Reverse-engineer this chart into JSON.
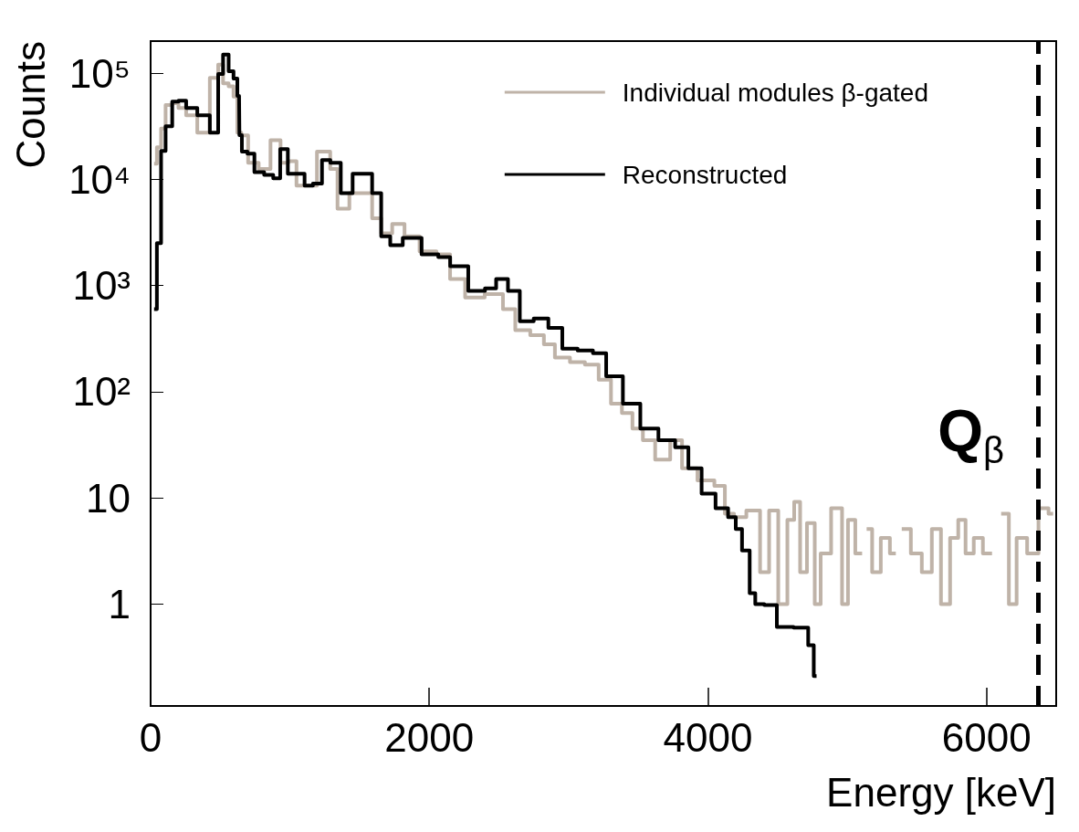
{
  "chart_data": {
    "type": "step",
    "xlabel": "Energy [keV]",
    "ylabel": "Counts",
    "log": "y",
    "xlim": [
      0,
      6500
    ],
    "xticks": [
      0,
      2000,
      4000,
      6000
    ],
    "ylim": [
      0.11,
      200000
    ],
    "yticks": [
      1,
      10,
      {
        "value": 100,
        "label": "10²"
      },
      {
        "value": 1000,
        "label": "10³"
      },
      {
        "value": 10000,
        "label": "10⁴"
      },
      {
        "value": 100000,
        "label": "10⁵"
      }
    ],
    "grid": false,
    "legend": "top right",
    "marker": "none",
    "line_style": "solid",
    "ref_lines": [
      {
        "axis": "x",
        "value": 6370,
        "label": "Q$_{β}$",
        "line_style": "dashed",
        "color": "#000000"
      }
    ],
    "series": [
      {
        "name": "Individual modules β-gated",
        "color": "#bfb3a8",
        "x": [
          25,
          65,
          85,
          130,
          180,
          220,
          290,
          380,
          470,
          500,
          540,
          580,
          610,
          635,
          667,
          733,
          818,
          903,
          962,
          1014,
          1080,
          1132,
          1256,
          1322,
          1361,
          1492,
          1557,
          1623,
          1688,
          1780,
          1865,
          1996,
          2107,
          2192,
          2323,
          2473,
          2585,
          2650,
          2800,
          2846,
          2958,
          3062,
          3173,
          3259,
          3350,
          3416,
          3501,
          3566,
          3677,
          3782,
          3847,
          4004,
          4089,
          4155,
          4220,
          4332,
          4417,
          4462,
          4548,
          4593,
          4646,
          4678,
          4744,
          4790,
          4829,
          4940,
          4986,
          5025,
          5091,
          5123,
          5156,
          5202,
          5280,
          5333,
          5365,
          5418,
          5496,
          5575,
          5640,
          5706,
          5771,
          5823,
          5876,
          5941,
          6007,
          6072,
          6138,
          6183,
          6249,
          6334,
          6412,
          6478
        ],
        "values": [
          14000,
          20000,
          30000,
          50000,
          52000,
          47000,
          40000,
          27500,
          90000,
          120000,
          80000,
          75000,
          60000,
          27500,
          25900,
          14300,
          12500,
          23300,
          14300,
          14800,
          8700,
          8700,
          18200,
          12500,
          5300,
          7400,
          7400,
          4300,
          3100,
          3800,
          2900,
          2100,
          1960,
          1150,
          770,
          830,
          600,
          380,
          340,
          280,
          210,
          190,
          180,
          130,
          77,
          63,
          45,
          35,
          23,
          35,
          19,
          14.6,
          13,
          7.1,
          6.6,
          7.6,
          2,
          7.6,
          1,
          6.2,
          9.2,
          2,
          5.8,
          1,
          3,
          8,
          1,
          6.2,
          3,
          null,
          5.1,
          2,
          4.2,
          3,
          null,
          5.1,
          3,
          2,
          5.1,
          1,
          4.2,
          6.2,
          3,
          4.2,
          3,
          null,
          7.1,
          1,
          4.2,
          3,
          8,
          7.1
        ]
      },
      {
        "name": "Reconstructed",
        "color": "#000000",
        "x": [
          25,
          65,
          85,
          130,
          180,
          220,
          290,
          380,
          470,
          500,
          540,
          580,
          610,
          635,
          640,
          670,
          720,
          770,
          860,
          900,
          960,
          1010,
          1080,
          1130,
          1200,
          1260,
          1320,
          1410,
          1490,
          1560,
          1620,
          1690,
          1750,
          1870,
          2020,
          2110,
          2190,
          2370,
          2430,
          2530,
          2600,
          2700,
          2800,
          2910,
          3000,
          3130,
          3220,
          3320,
          3460,
          3570,
          3720,
          3810,
          3910,
          4000,
          4110,
          4180,
          4220,
          4270,
          4330,
          4350,
          4460,
          4530,
          4700,
          4740,
          4780
        ],
        "values": [
          600,
          2500,
          18500,
          31600,
          54000,
          55000,
          47000,
          40000,
          27500,
          98000,
          149000,
          104000,
          89000,
          61000,
          26000,
          18200,
          17400,
          11700,
          11000,
          10200,
          19200,
          11300,
          11300,
          8700,
          9100,
          15200,
          14300,
          7400,
          11300,
          11300,
          7400,
          2900,
          2400,
          2800,
          1960,
          1850,
          1520,
          890,
          940,
          1150,
          890,
          460,
          490,
          400,
          254,
          244,
          230,
          140,
          77,
          45,
          35,
          30,
          19,
          11,
          8,
          6.6,
          5.1,
          3.2,
          1.27,
          1,
          0.98,
          0.61,
          0.6,
          0.41,
          0.21
        ]
      }
    ]
  }
}
